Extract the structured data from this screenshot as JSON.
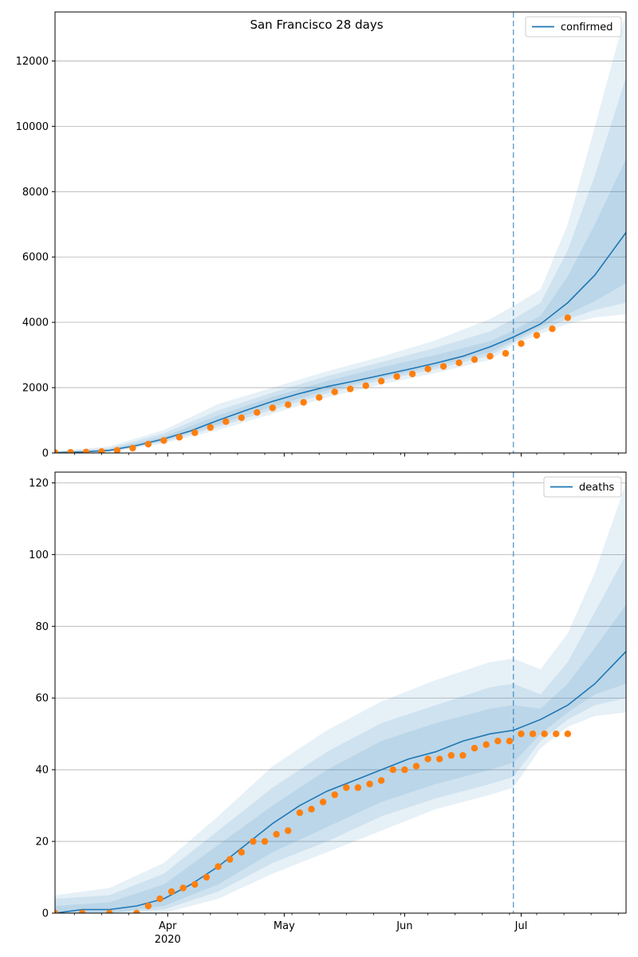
{
  "title": "San Francisco 28 days",
  "colors": {
    "model": "#1f77b4",
    "observed": "#ff7f0e",
    "band": "#1f77b4",
    "grid": "#b0b0b0",
    "forecast_line": "#1f77b4"
  },
  "chart_data": [
    {
      "type": "line",
      "series_kind": "confirmed",
      "title": "San Francisco 28 days",
      "legend": [
        "confirmed"
      ],
      "legend_placement": "top-right",
      "grid": "horizontal",
      "xlabel": "",
      "ylabel": "",
      "x_axis_type": "date",
      "xlim": [
        "2020-03-03",
        "2020-07-28"
      ],
      "ylim": [
        0,
        13500
      ],
      "yticks": [
        0,
        2000,
        4000,
        6000,
        8000,
        10000,
        12000
      ],
      "forecast_start": "2020-06-29",
      "model_series": {
        "name": "confirmed",
        "x": [
          "2020-03-03",
          "2020-03-10",
          "2020-03-17",
          "2020-03-24",
          "2020-03-31",
          "2020-04-07",
          "2020-04-14",
          "2020-04-21",
          "2020-04-28",
          "2020-05-05",
          "2020-05-12",
          "2020-05-19",
          "2020-05-26",
          "2020-06-02",
          "2020-06-09",
          "2020-06-16",
          "2020-06-23",
          "2020-06-29",
          "2020-07-06",
          "2020-07-13",
          "2020-07-20",
          "2020-07-28"
        ],
        "y": [
          10,
          30,
          80,
          230,
          430,
          680,
          1000,
          1300,
          1580,
          1820,
          2030,
          2200,
          2380,
          2560,
          2750,
          2960,
          3250,
          3550,
          3950,
          4600,
          5450,
          6750
        ]
      },
      "bands": [
        {
          "level": "outer",
          "x": [
            "2020-03-03",
            "2020-03-17",
            "2020-03-31",
            "2020-04-14",
            "2020-04-28",
            "2020-05-12",
            "2020-05-26",
            "2020-06-09",
            "2020-06-23",
            "2020-06-29",
            "2020-07-06",
            "2020-07-13",
            "2020-07-20",
            "2020-07-28"
          ],
          "lower": [
            0,
            20,
            300,
            700,
            1200,
            1700,
            2100,
            2450,
            2850,
            3300,
            3650,
            3950,
            4150,
            4250
          ],
          "upper": [
            50,
            200,
            700,
            1500,
            2000,
            2500,
            2950,
            3450,
            4100,
            4500,
            5000,
            7000,
            10000,
            13500
          ]
        },
        {
          "level": "middle",
          "x": [
            "2020-03-03",
            "2020-03-17",
            "2020-03-31",
            "2020-04-14",
            "2020-04-28",
            "2020-05-12",
            "2020-05-26",
            "2020-06-09",
            "2020-06-23",
            "2020-06-29",
            "2020-07-06",
            "2020-07-13",
            "2020-07-20",
            "2020-07-28"
          ],
          "lower": [
            0,
            40,
            340,
            800,
            1320,
            1820,
            2220,
            2570,
            2980,
            3380,
            3760,
            4100,
            4380,
            4600
          ],
          "upper": [
            40,
            150,
            600,
            1300,
            1850,
            2350,
            2780,
            3220,
            3720,
            4100,
            4600,
            6200,
            8500,
            11500
          ]
        },
        {
          "level": "inner",
          "x": [
            "2020-03-03",
            "2020-03-17",
            "2020-03-31",
            "2020-04-14",
            "2020-04-28",
            "2020-05-12",
            "2020-05-26",
            "2020-06-09",
            "2020-06-23",
            "2020-06-29",
            "2020-07-06",
            "2020-07-13",
            "2020-07-20",
            "2020-07-28"
          ],
          "lower": [
            0,
            55,
            380,
            880,
            1420,
            1920,
            2300,
            2650,
            3080,
            3450,
            3860,
            4250,
            4650,
            5200
          ],
          "upper": [
            30,
            110,
            500,
            1150,
            1720,
            2200,
            2620,
            3000,
            3420,
            3750,
            4200,
            5400,
            7000,
            9000
          ]
        }
      ],
      "observed_series": {
        "x": [
          "2020-03-03",
          "2020-03-07",
          "2020-03-11",
          "2020-03-15",
          "2020-03-19",
          "2020-03-23",
          "2020-03-27",
          "2020-03-31",
          "2020-04-04",
          "2020-04-08",
          "2020-04-12",
          "2020-04-16",
          "2020-04-20",
          "2020-04-24",
          "2020-04-28",
          "2020-05-02",
          "2020-05-06",
          "2020-05-10",
          "2020-05-14",
          "2020-05-18",
          "2020-05-22",
          "2020-05-26",
          "2020-05-30",
          "2020-06-03",
          "2020-06-07",
          "2020-06-11",
          "2020-06-15",
          "2020-06-19",
          "2020-06-23",
          "2020-06-27",
          "2020-07-01",
          "2020-07-05",
          "2020-07-09",
          "2020-07-13"
        ],
        "y": [
          14,
          20,
          30,
          45,
          80,
          150,
          270,
          380,
          480,
          620,
          780,
          960,
          1080,
          1240,
          1380,
          1480,
          1550,
          1700,
          1870,
          1960,
          2060,
          2200,
          2340,
          2420,
          2570,
          2650,
          2760,
          2860,
          2960,
          3050,
          3350,
          3600,
          3800,
          4140
        ]
      }
    },
    {
      "type": "line",
      "series_kind": "deaths",
      "legend": [
        "deaths"
      ],
      "legend_placement": "top-right",
      "grid": "horizontal",
      "xlabel": "",
      "ylabel": "",
      "x_axis_type": "date",
      "xlim": [
        "2020-03-03",
        "2020-07-28"
      ],
      "ylim": [
        0,
        123
      ],
      "yticks": [
        0,
        20,
        40,
        60,
        80,
        100,
        120
      ],
      "xticks": [
        "2020-04-01",
        "2020-05-01",
        "2020-06-01",
        "2020-07-01"
      ],
      "xtick_labels": [
        "Apr",
        "May",
        "Jun",
        "Jul"
      ],
      "xtick_year_label": "2020",
      "forecast_start": "2020-06-29",
      "model_series": {
        "name": "deaths",
        "x": [
          "2020-03-03",
          "2020-03-10",
          "2020-03-17",
          "2020-03-24",
          "2020-03-31",
          "2020-04-07",
          "2020-04-14",
          "2020-04-21",
          "2020-04-28",
          "2020-05-05",
          "2020-05-12",
          "2020-05-19",
          "2020-05-26",
          "2020-06-02",
          "2020-06-09",
          "2020-06-16",
          "2020-06-23",
          "2020-06-29",
          "2020-07-06",
          "2020-07-13",
          "2020-07-20",
          "2020-07-28"
        ],
        "y": [
          0,
          1,
          1,
          2,
          4,
          8,
          13,
          19,
          25,
          30,
          34,
          37,
          40,
          43,
          45,
          48,
          50,
          51,
          54,
          58,
          64,
          73
        ]
      },
      "bands": [
        {
          "level": "outer",
          "x": [
            "2020-03-03",
            "2020-03-17",
            "2020-03-31",
            "2020-04-14",
            "2020-04-28",
            "2020-05-12",
            "2020-05-26",
            "2020-06-09",
            "2020-06-23",
            "2020-06-29",
            "2020-07-06",
            "2020-07-13",
            "2020-07-20",
            "2020-07-28"
          ],
          "lower": [
            0,
            0,
            0,
            4,
            11,
            17,
            23,
            29,
            33,
            35,
            46,
            52,
            55,
            56
          ],
          "upper": [
            5,
            7,
            14,
            27,
            41,
            51,
            59,
            65,
            70,
            71,
            68,
            78,
            95,
            120
          ]
        },
        {
          "level": "middle",
          "x": [
            "2020-03-03",
            "2020-03-17",
            "2020-03-31",
            "2020-04-14",
            "2020-04-28",
            "2020-05-12",
            "2020-05-26",
            "2020-06-09",
            "2020-06-23",
            "2020-06-29",
            "2020-07-06",
            "2020-07-13",
            "2020-07-20",
            "2020-07-28"
          ],
          "lower": [
            0,
            0,
            1,
            6,
            14,
            20,
            27,
            32,
            36,
            38,
            48,
            54,
            58,
            60
          ],
          "upper": [
            4,
            5,
            11,
            23,
            35,
            45,
            53,
            58,
            63,
            64,
            61,
            70,
            84,
            100
          ]
        },
        {
          "level": "inner",
          "x": [
            "2020-03-03",
            "2020-03-17",
            "2020-03-31",
            "2020-04-14",
            "2020-04-28",
            "2020-05-12",
            "2020-05-26",
            "2020-06-09",
            "2020-06-23",
            "2020-06-29",
            "2020-07-06",
            "2020-07-13",
            "2020-07-20",
            "2020-07-28"
          ],
          "lower": [
            0,
            0,
            2,
            8,
            17,
            24,
            31,
            36,
            40,
            42,
            50,
            56,
            61,
            64
          ],
          "upper": [
            2,
            3,
            8,
            19,
            30,
            40,
            48,
            53,
            57,
            58,
            57,
            64,
            74,
            86
          ]
        }
      ],
      "observed_series": {
        "x": [
          "2020-03-03",
          "2020-03-10",
          "2020-03-17",
          "2020-03-24",
          "2020-03-27",
          "2020-03-30",
          "2020-04-02",
          "2020-04-05",
          "2020-04-08",
          "2020-04-11",
          "2020-04-14",
          "2020-04-17",
          "2020-04-20",
          "2020-04-23",
          "2020-04-26",
          "2020-04-29",
          "2020-05-02",
          "2020-05-05",
          "2020-05-08",
          "2020-05-11",
          "2020-05-14",
          "2020-05-17",
          "2020-05-20",
          "2020-05-23",
          "2020-05-26",
          "2020-05-29",
          "2020-06-01",
          "2020-06-04",
          "2020-06-07",
          "2020-06-10",
          "2020-06-13",
          "2020-06-16",
          "2020-06-19",
          "2020-06-22",
          "2020-06-25",
          "2020-06-28",
          "2020-07-01",
          "2020-07-04",
          "2020-07-07",
          "2020-07-10",
          "2020-07-13"
        ],
        "y": [
          0,
          0,
          0,
          0,
          2,
          4,
          6,
          7,
          8,
          10,
          13,
          15,
          17,
          20,
          20,
          22,
          23,
          28,
          29,
          31,
          33,
          35,
          35,
          36,
          37,
          40,
          40,
          41,
          43,
          43,
          44,
          44,
          46,
          47,
          48,
          48,
          50,
          50,
          50,
          50,
          50
        ]
      }
    }
  ]
}
